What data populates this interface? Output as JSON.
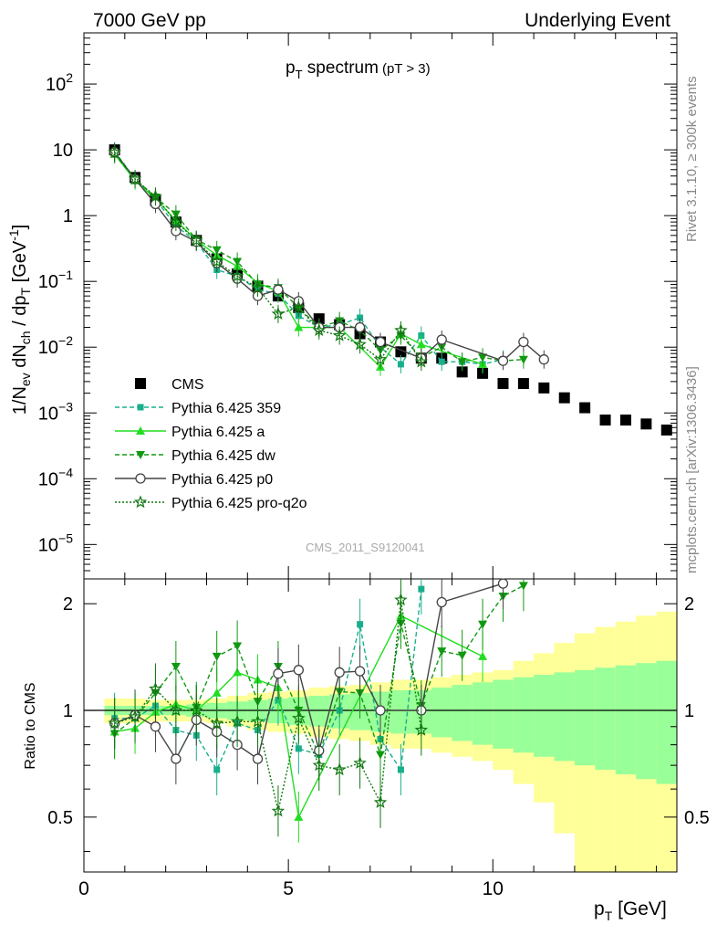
{
  "header": {
    "left": "7000 GeV pp",
    "right": "Underlying Event"
  },
  "side_labels": {
    "rivet": "Rivet 3.1.10, ≥ 300k events",
    "mcplots": "mcplots.cern.ch [arXiv:1306.3436]"
  },
  "watermark": "CMS_2011_S9120041",
  "chart_data": [
    {
      "type": "scatter",
      "title": "p_T spectrum (pT > 3)",
      "title_main": "p",
      "title_sub": "T",
      "title_rest": " spectrum",
      "title_small": "(pT >  3)",
      "xlabel": "p_T [GeV]",
      "ylabel": "1/N_ev dN_ch / dp_T [GeV^-1]",
      "yscale": "log",
      "xlim": [
        0,
        14.5
      ],
      "ylim": [
        3e-06,
        600
      ],
      "y_ticks": [
        {
          "v": 1e-05,
          "base": "10",
          "exp": "−5"
        },
        {
          "v": 0.0001,
          "base": "10",
          "exp": "−4"
        },
        {
          "v": 0.001,
          "base": "10",
          "exp": "−3"
        },
        {
          "v": 0.01,
          "base": "10",
          "exp": "−2"
        },
        {
          "v": 0.1,
          "base": "10",
          "exp": "−1"
        },
        {
          "v": 1,
          "base": "1",
          "exp": ""
        },
        {
          "v": 10,
          "base": "10",
          "exp": ""
        },
        {
          "v": 100,
          "base": "10",
          "exp": "2"
        }
      ],
      "legend": "center-left",
      "series": [
        {
          "name": "CMS",
          "style": "data",
          "color": "#000000",
          "x": [
            0.75,
            1.25,
            1.75,
            2.25,
            2.75,
            3.25,
            3.75,
            4.25,
            4.75,
            5.25,
            5.75,
            6.25,
            6.75,
            7.25,
            7.75,
            8.25,
            8.75,
            9.25,
            9.75,
            10.25,
            10.75,
            11.25,
            11.75,
            12.25,
            12.75,
            13.25,
            13.75,
            14.25
          ],
          "y": [
            10,
            3.8,
            1.7,
            0.8,
            0.42,
            0.22,
            0.13,
            0.085,
            0.06,
            0.04,
            0.027,
            0.022,
            0.016,
            0.012,
            0.0085,
            0.0068,
            0.0068,
            0.0042,
            0.004,
            0.0028,
            0.0028,
            0.0024,
            0.0017,
            0.0012,
            0.00078,
            0.00078,
            0.00068,
            0.00055
          ]
        },
        {
          "name": "Pythia 6.425 359",
          "style": "dashed",
          "marker": "square",
          "color": "#1aaf8c",
          "x": [
            0.75,
            1.25,
            1.75,
            2.25,
            2.75,
            3.25,
            3.75,
            4.25,
            4.75,
            5.25,
            5.75,
            6.25,
            6.75,
            7.25,
            7.75,
            8.25,
            8.75,
            9.25,
            9.75,
            10.25
          ],
          "y": [
            9.5,
            3.6,
            1.75,
            0.7,
            0.4,
            0.15,
            0.12,
            0.075,
            0.065,
            0.03,
            0.02,
            0.022,
            0.028,
            0.01,
            0.0055,
            0.015,
            0.006,
            0.006,
            0.0055,
            0.0065
          ]
        },
        {
          "name": "Pythia 6.425 a",
          "style": "solid",
          "marker": "triangle-up",
          "color": "#22dd22",
          "x": [
            0.75,
            1.25,
            1.75,
            2.25,
            2.75,
            3.25,
            3.75,
            4.25,
            4.75,
            5.25,
            5.75,
            6.25,
            7.25,
            7.75,
            8.25,
            9.75
          ],
          "y": [
            8.6,
            3.4,
            1.8,
            0.85,
            0.42,
            0.25,
            0.17,
            0.095,
            0.07,
            0.02,
            0.02,
            0.02,
            0.005,
            0.016,
            0.011,
            0.0055
          ]
        },
        {
          "name": "Pythia 6.425 dw",
          "style": "dashed",
          "marker": "triangle-down",
          "color": "#119911",
          "x": [
            0.75,
            1.25,
            1.75,
            2.25,
            2.75,
            3.25,
            3.75,
            4.25,
            4.75,
            5.25,
            5.75,
            6.25,
            6.75,
            7.25,
            7.75,
            8.25,
            8.75,
            9.25,
            9.75,
            10.25,
            10.75
          ],
          "y": [
            8.6,
            3.6,
            1.9,
            1.05,
            0.43,
            0.3,
            0.2,
            0.09,
            0.08,
            0.04,
            0.02,
            0.025,
            0.018,
            0.009,
            0.015,
            0.007,
            0.01,
            0.006,
            0.007,
            0.0062,
            0.0065
          ]
        },
        {
          "name": "Pythia 6.425 p0",
          "style": "solid",
          "marker": "circle-open",
          "color": "#444444",
          "x": [
            0.75,
            1.25,
            1.75,
            2.25,
            2.75,
            3.25,
            3.75,
            4.25,
            4.75,
            5.25,
            5.75,
            6.25,
            6.75,
            7.25,
            8.25,
            8.75,
            10.25,
            10.75,
            11.25
          ],
          "y": [
            9.2,
            3.6,
            1.5,
            0.58,
            0.4,
            0.19,
            0.11,
            0.06,
            0.075,
            0.05,
            0.02,
            0.02,
            0.02,
            0.012,
            0.0068,
            0.013,
            0.0062,
            0.012,
            0.0065
          ]
        },
        {
          "name": "Pythia 6.425 pro-q2o",
          "style": "dotted",
          "marker": "star",
          "color": "#117711",
          "x": [
            0.75,
            1.25,
            1.75,
            2.25,
            2.75,
            3.25,
            3.75,
            4.25,
            4.75,
            5.25,
            5.75,
            6.25,
            6.75,
            7.25,
            7.75,
            8.25
          ],
          "y": [
            9.2,
            3.6,
            1.95,
            0.8,
            0.42,
            0.2,
            0.12,
            0.08,
            0.032,
            0.04,
            0.018,
            0.015,
            0.011,
            0.0065,
            0.018,
            0.006
          ]
        }
      ]
    },
    {
      "type": "scatter",
      "xlabel": "p_T [GeV]",
      "ylabel": "Ratio to CMS",
      "xlim": [
        0,
        14.5
      ],
      "ylim": [
        0.35,
        2.35
      ],
      "x_ticks": [
        0,
        5,
        10
      ],
      "y_ticks": [
        0.5,
        1,
        2
      ],
      "bands": {
        "x": [
          0.5,
          1.0,
          1.5,
          2.0,
          2.5,
          3.0,
          3.5,
          4.0,
          4.5,
          5.0,
          5.5,
          6.0,
          6.5,
          7.0,
          7.5,
          8.0,
          8.5,
          9.0,
          9.5,
          10.0,
          10.5,
          11.0,
          11.5,
          12.0,
          12.5,
          13.0,
          13.5,
          14.0,
          14.5
        ],
        "outer_lo": [
          0.92,
          0.92,
          0.93,
          0.93,
          0.93,
          0.92,
          0.9,
          0.88,
          0.87,
          0.86,
          0.84,
          0.83,
          0.82,
          0.8,
          0.78,
          0.78,
          0.76,
          0.74,
          0.72,
          0.68,
          0.62,
          0.55,
          0.45,
          0.35,
          0.35,
          0.35,
          0.35,
          0.35
        ],
        "outer_hi": [
          1.08,
          1.08,
          1.07,
          1.07,
          1.07,
          1.08,
          1.1,
          1.12,
          1.13,
          1.14,
          1.16,
          1.17,
          1.18,
          1.2,
          1.22,
          1.22,
          1.24,
          1.26,
          1.28,
          1.3,
          1.38,
          1.45,
          1.55,
          1.65,
          1.72,
          1.78,
          1.85,
          1.9
        ],
        "inner_lo": [
          0.97,
          0.97,
          0.97,
          0.97,
          0.96,
          0.95,
          0.94,
          0.93,
          0.92,
          0.91,
          0.9,
          0.89,
          0.88,
          0.87,
          0.86,
          0.86,
          0.84,
          0.82,
          0.8,
          0.78,
          0.76,
          0.74,
          0.72,
          0.7,
          0.68,
          0.66,
          0.64,
          0.62
        ],
        "inner_hi": [
          1.03,
          1.03,
          1.03,
          1.03,
          1.04,
          1.05,
          1.06,
          1.07,
          1.08,
          1.09,
          1.1,
          1.11,
          1.12,
          1.13,
          1.14,
          1.14,
          1.16,
          1.18,
          1.2,
          1.22,
          1.24,
          1.26,
          1.28,
          1.3,
          1.32,
          1.34,
          1.36,
          1.38
        ]
      },
      "series": [
        {
          "name": "Pythia 6.425 359",
          "color": "#1aaf8c",
          "style": "dashed",
          "marker": "square",
          "x": [
            0.75,
            1.25,
            1.75,
            2.25,
            2.75,
            3.25,
            3.75,
            4.25,
            4.75,
            5.25,
            5.75,
            6.25,
            6.75,
            7.25,
            7.75,
            8.25
          ],
          "y": [
            0.95,
            0.95,
            1.03,
            0.88,
            0.85,
            0.68,
            0.92,
            0.88,
            1.07,
            0.78,
            0.75,
            1.0,
            1.75,
            0.83,
            0.68,
            2.2
          ]
        },
        {
          "name": "Pythia 6.425 a",
          "color": "#22dd22",
          "style": "solid",
          "marker": "triangle-up",
          "x": [
            0.75,
            1.25,
            1.75,
            2.25,
            2.75,
            3.25,
            3.75,
            4.25,
            4.75,
            5.25,
            7.75,
            9.75
          ],
          "y": [
            0.87,
            0.89,
            0.99,
            1.04,
            1.0,
            1.12,
            1.28,
            1.22,
            1.16,
            0.5,
            1.85,
            1.42
          ]
        },
        {
          "name": "Pythia 6.425 dw",
          "color": "#119911",
          "style": "dashed",
          "marker": "triangle-down",
          "x": [
            0.75,
            1.25,
            1.75,
            2.25,
            2.75,
            3.25,
            3.75,
            4.25,
            4.75,
            5.25,
            5.75,
            6.25,
            6.75,
            7.25,
            7.75,
            8.25,
            8.75,
            9.25,
            9.75,
            10.25,
            10.75
          ],
          "y": [
            0.86,
            0.95,
            1.12,
            1.33,
            1.02,
            1.42,
            1.52,
            1.06,
            1.33,
            1.0,
            0.75,
            1.13,
            1.12,
            0.75,
            1.76,
            1.03,
            1.47,
            1.43,
            1.75,
            2.1,
            2.25
          ]
        },
        {
          "name": "Pythia 6.425 p0",
          "color": "#444444",
          "style": "solid",
          "marker": "circle-open",
          "x": [
            0.75,
            1.25,
            1.75,
            2.25,
            2.75,
            3.25,
            3.75,
            4.25,
            4.75,
            5.25,
            5.75,
            6.25,
            6.75,
            7.25,
            8.25,
            8.75,
            10.25
          ],
          "y": [
            0.92,
            0.97,
            0.9,
            0.73,
            0.94,
            0.87,
            0.8,
            0.73,
            1.27,
            1.3,
            0.77,
            1.28,
            1.29,
            1.0,
            1.0,
            2.02,
            2.28
          ]
        },
        {
          "name": "Pythia 6.425 pro-q2o",
          "color": "#117711",
          "style": "dotted",
          "marker": "star",
          "x": [
            0.75,
            1.25,
            1.75,
            2.25,
            2.75,
            3.25,
            3.75,
            4.25,
            4.75,
            5.25,
            5.75,
            6.25,
            6.75,
            7.25,
            7.75,
            8.25
          ],
          "y": [
            0.92,
            0.96,
            1.15,
            1.0,
            1.0,
            0.92,
            0.93,
            0.93,
            0.52,
            0.95,
            0.7,
            0.68,
            0.71,
            0.55,
            2.05,
            0.88
          ]
        }
      ]
    }
  ]
}
